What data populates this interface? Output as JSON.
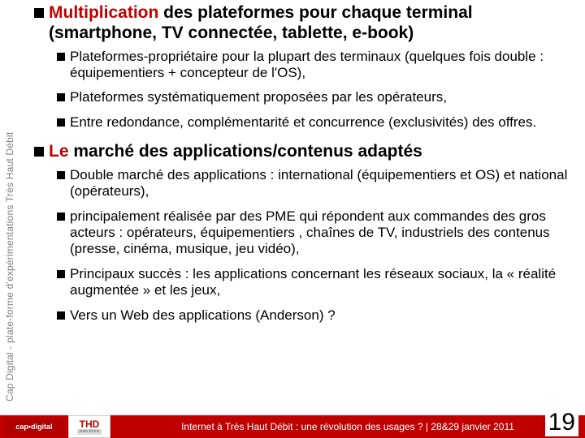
{
  "sidebar": {
    "text": "Cap Digital - plate-forme d'expérimentations Très Haut Débit",
    "color": "#808080"
  },
  "section1": {
    "title_a": "Multiplication",
    "title_b": " des plateformes pour chaque terminal (smartphone, TV connectée, tablette, e-book)",
    "items": [
      "Plateformes-propriétaire pour la plupart des terminaux (quelques fois double : équipementiers + concepteur de l'OS),",
      "Plateformes systématiquement proposées par les opérateurs,",
      "Entre redondance, complémentarité et concurrence (exclusivités) des offres."
    ]
  },
  "section2": {
    "title_a": "Le",
    "title_b": " marché des applications/contenus adaptés",
    "items": [
      "Double marché des applications : international (équipementiers et OS) et national (opérateurs),",
      "principalement réalisée par des PME qui répondent aux commandes des gros acteurs : opérateurs, équipementiers , chaînes de TV, industriels des contenus (presse, cinéma, musique, jeu vidéo),",
      "Principaux succès : les applications concernant les réseaux sociaux, la « réalité augmentée » et les jeux,",
      "Vers un Web des applications (Anderson) ?"
    ]
  },
  "footer": {
    "logo_cap": "cap•digital",
    "logo_thd_top": "THD",
    "logo_thd_bot": "plate-forme",
    "text": "Internet à Très Haut Débit : une révolution des usages ? |  28&29 janvier 2011",
    "bg_color": "#c00000"
  },
  "page_number": "19",
  "colors": {
    "heading_red": "#c00000",
    "body_text": "#000000",
    "sidebar_text": "#808080"
  }
}
